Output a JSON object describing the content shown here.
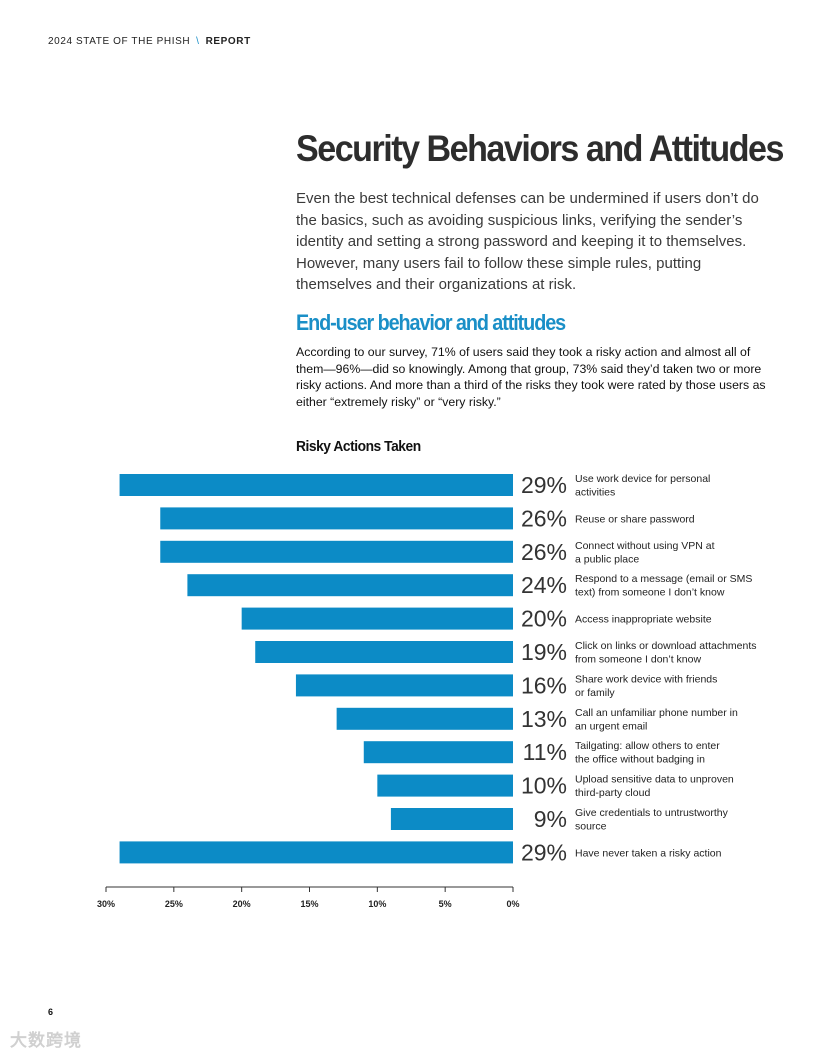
{
  "header": {
    "doc": "2024 STATE OF THE PHISH",
    "separator": "\\",
    "section": "REPORT"
  },
  "title": "Security Behaviors and Attitudes",
  "intro": "Even the best technical defenses can be undermined if users don’t do the basics, such as avoiding suspicious links, verifying the sender’s identity and setting a strong password and keeping it to themselves. However, many users fail to follow these simple rules, putting themselves and their organizations at risk.",
  "subtitle": "End-user behavior and attitudes",
  "body": "According to our survey, 71% of users said they took a risky action and almost all of them—96%—did so knowingly. Among that group, 73% said they’d taken two or more risky actions. And more than a third of the risks they took were rated by those users as either “extremely risky” or “very risky.”",
  "chart_data": {
    "type": "bar",
    "orientation": "horizontal",
    "title": "Risky Actions Taken",
    "categories": [
      [
        "Use work device for personal",
        "activities"
      ],
      [
        "Reuse or share password"
      ],
      [
        "Connect without using VPN at",
        "a public place"
      ],
      [
        "Respond to a message (email or SMS",
        "text) from someone I don’t know"
      ],
      [
        "Access inappropriate website"
      ],
      [
        "Click on links or download attachments",
        "from someone I don’t know"
      ],
      [
        "Share work device with friends",
        "or family"
      ],
      [
        "Call an unfamiliar phone number in",
        "an urgent email"
      ],
      [
        "Tailgating: allow others to enter",
        "the office without badging in"
      ],
      [
        "Upload sensitive data to unproven",
        "third-party cloud"
      ],
      [
        "Give credentials to untrustworthy",
        "source"
      ],
      [
        "Have never taken a risky action"
      ]
    ],
    "values": [
      29,
      26,
      26,
      24,
      20,
      19,
      16,
      13,
      11,
      10,
      9,
      29
    ],
    "value_labels": [
      "29%",
      "26%",
      "26%",
      "24%",
      "20%",
      "19%",
      "16%",
      "13%",
      "11%",
      "10%",
      "9%",
      "29%"
    ],
    "xlim": [
      0,
      30
    ],
    "x_reversed": true,
    "ticks": [
      30,
      25,
      20,
      15,
      10,
      5,
      0
    ],
    "tick_labels": [
      "30%",
      "25%",
      "20%",
      "15%",
      "10%",
      "5%",
      "0%"
    ],
    "bar_color": "#0c8bc6"
  },
  "page_number": "6",
  "watermark": "大数跨境"
}
